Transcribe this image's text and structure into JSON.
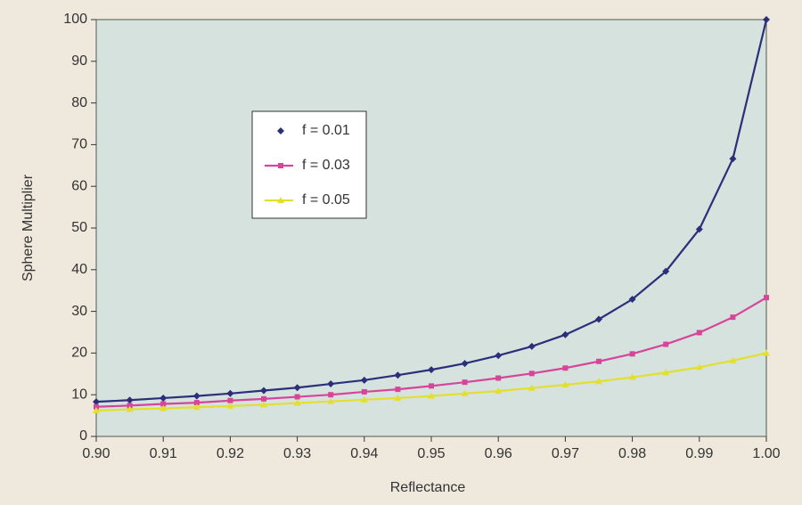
{
  "chart_data": {
    "type": "line",
    "x_label": "Reflectance",
    "y_label": "Sphere Multiplier",
    "x": [
      0.9,
      0.905,
      0.91,
      0.915,
      0.92,
      0.925,
      0.93,
      0.935,
      0.94,
      0.945,
      0.95,
      0.955,
      0.96,
      0.965,
      0.97,
      0.975,
      0.98,
      0.985,
      0.99,
      0.995,
      1.0
    ],
    "series": [
      {
        "name": "f = 0.01",
        "color": "#2b2f7a",
        "marker": "diamond",
        "values": [
          8.3,
          8.7,
          9.2,
          9.7,
          10.3,
          11.0,
          11.7,
          12.6,
          13.5,
          14.7,
          16.0,
          17.5,
          19.4,
          21.6,
          24.4,
          28.1,
          32.9,
          39.6,
          49.7,
          66.6,
          100
        ]
      },
      {
        "name": "f = 0.03",
        "color": "#d6459a",
        "marker": "square",
        "values": [
          7.1,
          7.4,
          7.8,
          8.1,
          8.6,
          9.0,
          9.5,
          10.0,
          10.7,
          11.3,
          12.1,
          13.0,
          14.0,
          15.1,
          16.4,
          18.0,
          19.8,
          22.1,
          24.9,
          28.6,
          33.3
        ]
      },
      {
        "name": "f = 0.05",
        "color": "#e3df2e",
        "marker": "triangle",
        "values": [
          6.2,
          6.5,
          6.7,
          7.0,
          7.3,
          7.6,
          8.0,
          8.4,
          8.8,
          9.2,
          9.7,
          10.3,
          10.9,
          11.6,
          12.4,
          13.2,
          14.2,
          15.3,
          16.6,
          18.2,
          20.0
        ]
      }
    ],
    "xlim": [
      0.9,
      1.0
    ],
    "xticks": [
      {
        "value": 0.9,
        "label": "0.90"
      },
      0.91,
      0.92,
      0.93,
      0.94,
      0.95,
      0.96,
      0.97,
      0.98,
      0.99,
      {
        "value": 1.0,
        "label": "1.00"
      }
    ],
    "ylim": [
      0,
      100
    ],
    "yticks": [
      0,
      10,
      20,
      30,
      40,
      50,
      60,
      70,
      80,
      90,
      100
    ],
    "plot_background": "#d5e2de",
    "legend": "upper left"
  }
}
